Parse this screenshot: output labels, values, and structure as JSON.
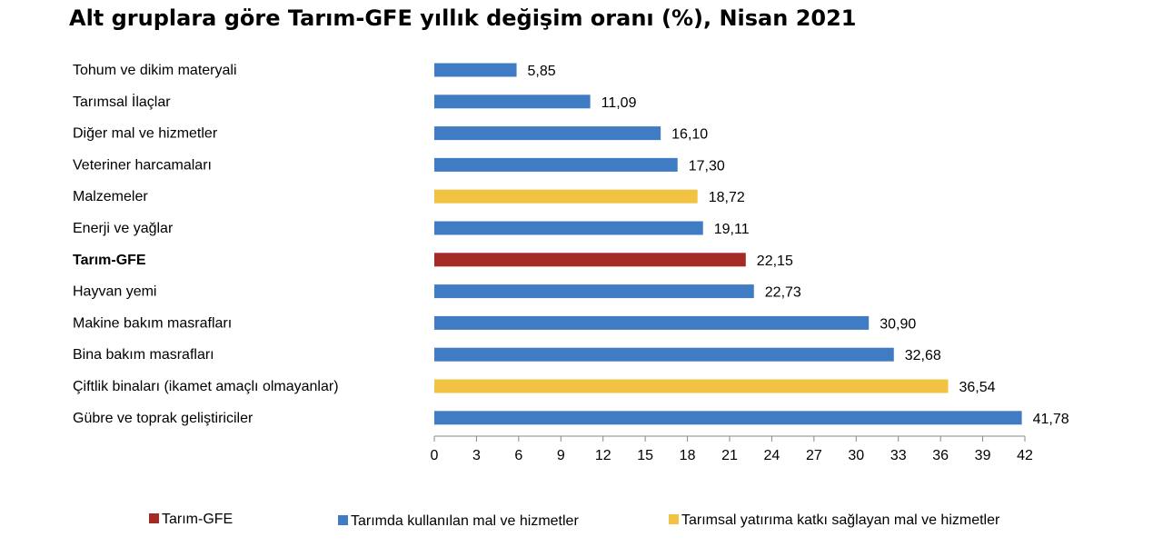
{
  "chart_data": {
    "type": "bar",
    "orientation": "horizontal",
    "title": "Alt gruplara göre Tarım-GFE yıllık değişim oranı (%), Nisan 2021",
    "categories": [
      "Tohum ve dikim materyali",
      "Tarımsal İlaçlar",
      "Diğer mal ve hizmetler",
      "Veteriner harcamaları",
      "Malzemeler",
      "Enerji  ve yağlar",
      "Tarım-GFE",
      "Hayvan yemi",
      "Makine bakım masrafları",
      "Bina bakım masrafları",
      "Çiftlik binaları (ikamet amaçlı olmayanlar)",
      "Gübre ve toprak geliştiriciler"
    ],
    "values": [
      5.85,
      11.09,
      16.1,
      17.3,
      18.72,
      19.11,
      22.15,
      22.73,
      30.9,
      32.68,
      36.54,
      41.78
    ],
    "value_labels": [
      "5,85",
      "11,09",
      "16,10",
      "17,30",
      "18,72",
      "19,11",
      "22,15",
      "22,73",
      "30,90",
      "32,68",
      "36,54",
      "41,78"
    ],
    "groups": [
      "blue",
      "blue",
      "blue",
      "blue",
      "yellow",
      "blue",
      "red",
      "blue",
      "blue",
      "blue",
      "yellow",
      "blue"
    ],
    "bold_categories": [
      "Tarım-GFE"
    ],
    "xlim": [
      0,
      42
    ],
    "xticks": [
      0,
      3,
      6,
      9,
      12,
      15,
      18,
      21,
      24,
      27,
      30,
      33,
      36,
      39,
      42
    ],
    "grid": false,
    "legend": [
      {
        "key": "red",
        "label": "Tarım-GFE"
      },
      {
        "key": "blue",
        "label": "Tarımda kullanılan mal ve hizmetler"
      },
      {
        "key": "yellow",
        "label": "Tarımsal yatırıma katkı sağlayan mal ve hizmetler"
      }
    ],
    "legend_position": "bottom",
    "colors": {
      "blue": "#3f7cc3",
      "yellow": "#f2c242",
      "red": "#a42a25"
    }
  }
}
